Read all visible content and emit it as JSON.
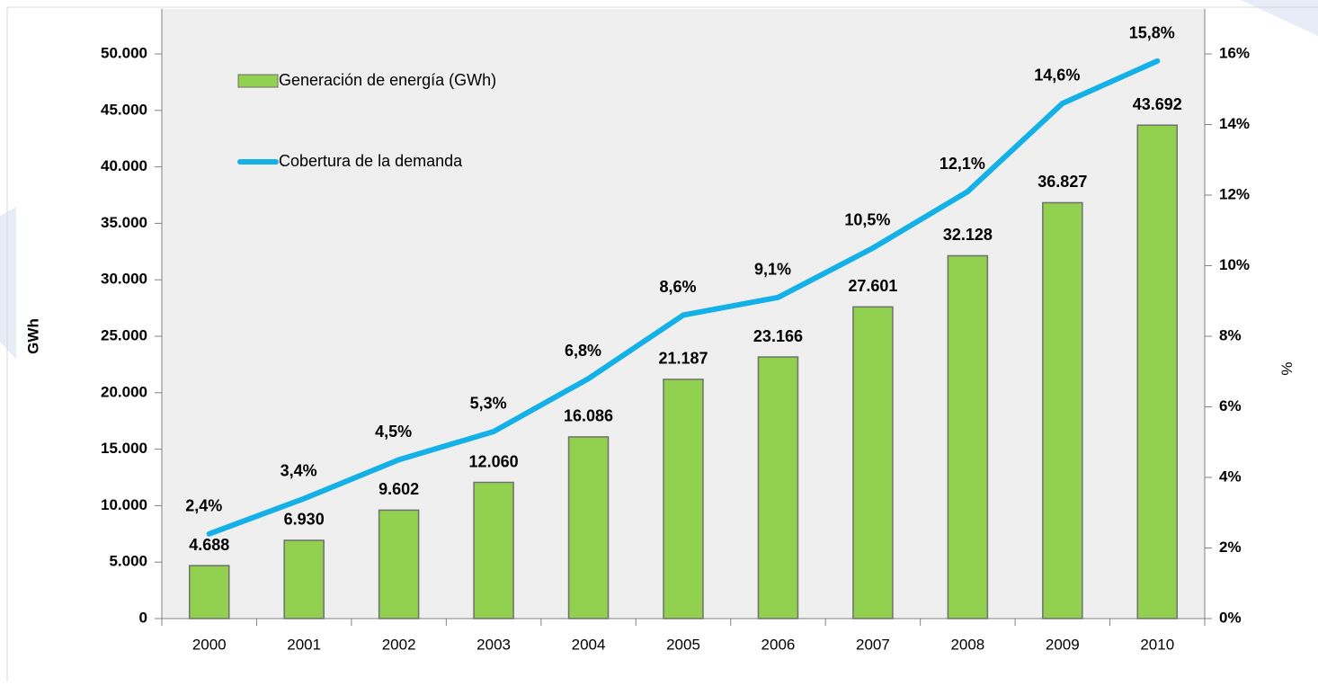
{
  "chart_data": {
    "type": "bar",
    "categories": [
      "2000",
      "2001",
      "2002",
      "2003",
      "2004",
      "2005",
      "2006",
      "2007",
      "2008",
      "2009",
      "2010"
    ],
    "series": [
      {
        "name": "Generación de energía (GWh)",
        "type": "bar",
        "color": "#92d050",
        "values": [
          4688,
          6930,
          9602,
          12060,
          16086,
          21187,
          23166,
          27601,
          32128,
          36827,
          43692
        ],
        "value_labels": [
          "4.688",
          "6.930",
          "9.602",
          "12.060",
          "16.086",
          "21.187",
          "23.166",
          "27.601",
          "32.128",
          "36.827",
          "43.692"
        ]
      },
      {
        "name": "Cobertura de la demanda",
        "type": "line",
        "axis": "y2",
        "color": "#14b0e8",
        "values": [
          2.4,
          3.4,
          4.5,
          5.3,
          6.8,
          8.6,
          9.1,
          10.5,
          12.1,
          14.6,
          15.8
        ],
        "value_labels": [
          "2,4%",
          "3,4%",
          "4,5%",
          "5,3%",
          "6,8%",
          "8,6%",
          "9,1%",
          "10,5%",
          "12,1%",
          "14,6%",
          "15,8%"
        ]
      }
    ],
    "ylabel": "GWh",
    "y2label": "%",
    "ylim": [
      0,
      50000
    ],
    "yticks": [
      0,
      {
        "value": 5000,
        "label": "5.000"
      },
      {
        "value": 10000,
        "label": "10.000"
      },
      {
        "value": 15000,
        "label": "15.000"
      },
      {
        "value": 20000,
        "label": "20.000"
      },
      {
        "value": 25000,
        "label": "25.000"
      },
      {
        "value": 30000,
        "label": "30.000"
      },
      {
        "value": 35000,
        "label": "35.000"
      },
      {
        "value": 40000,
        "label": "40.000"
      },
      {
        "value": 45000,
        "label": "45.000"
      },
      {
        "value": 50000,
        "label": "50.000"
      }
    ],
    "y2lim": [
      0,
      16
    ],
    "y2ticks": [
      {
        "value": 0,
        "label": "0%"
      },
      {
        "value": 2,
        "label": "2%"
      },
      {
        "value": 4,
        "label": "4%"
      },
      {
        "value": 6,
        "label": "6%"
      },
      {
        "value": 8,
        "label": "8%"
      },
      {
        "value": 10,
        "label": "10%"
      },
      {
        "value": 12,
        "label": "12%"
      },
      {
        "value": 14,
        "label": "14%"
      },
      {
        "value": 16,
        "label": "16%"
      }
    ],
    "legend": "upper left"
  }
}
